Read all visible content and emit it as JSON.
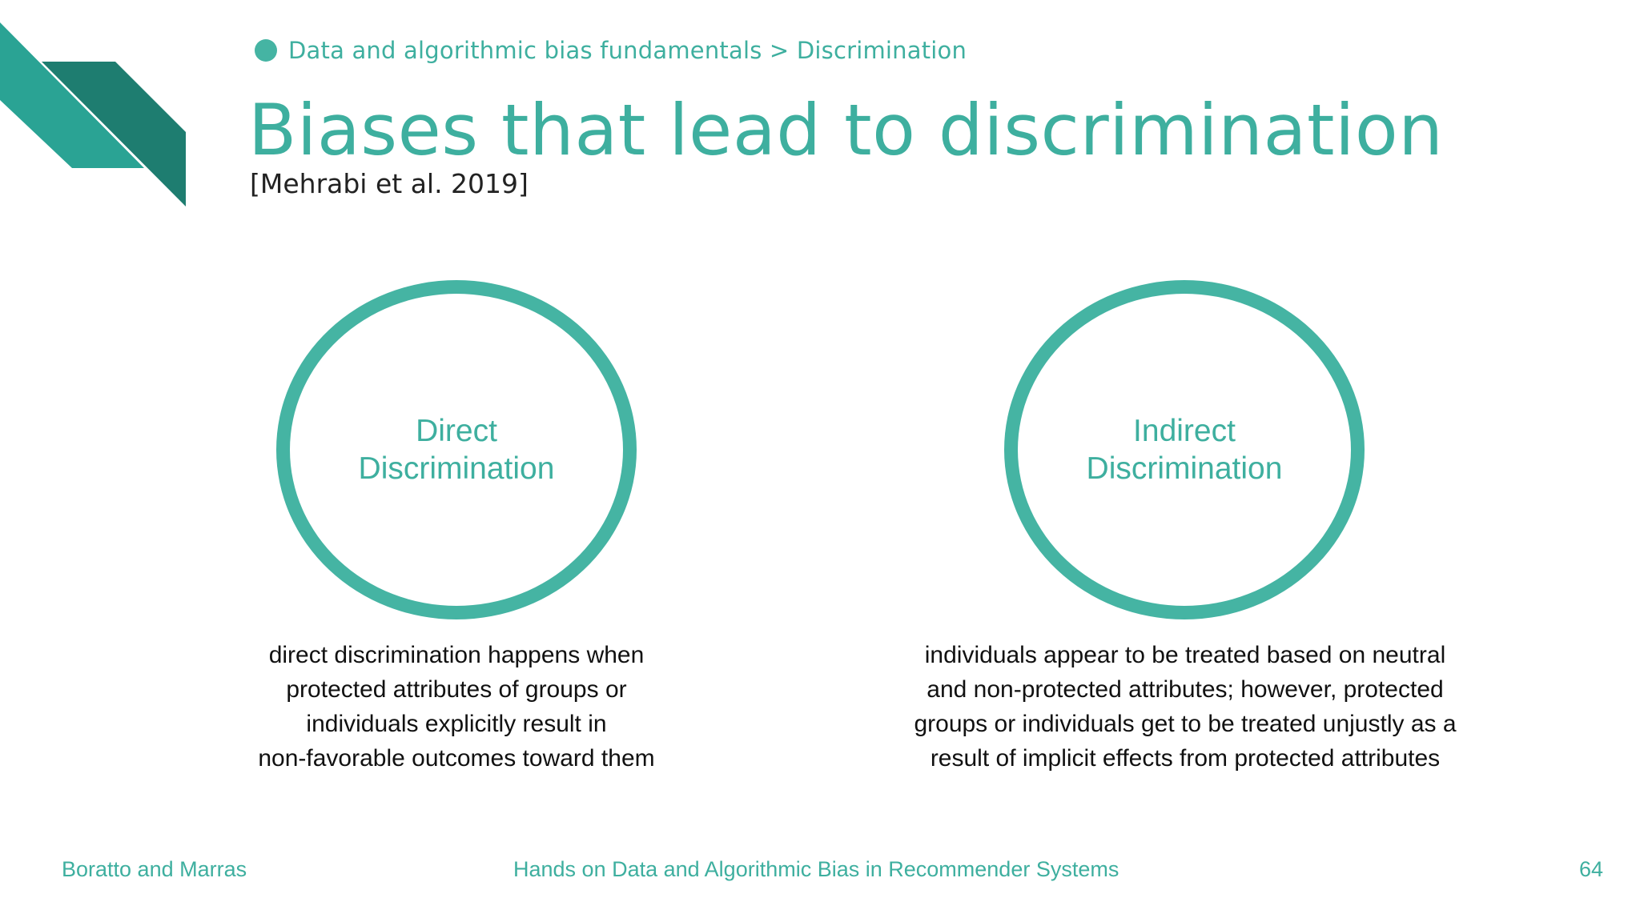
{
  "colors": {
    "accent": "#45b4a3",
    "accent_dark": "#1e7d70",
    "text": "#111111"
  },
  "breadcrumb": {
    "icon": "bullet-dot",
    "text": "Data and algorithmic bias fundamentals > Discrimination"
  },
  "slide": {
    "title": "Biases that lead to discrimination",
    "citation": "[Mehrabi et al. 2019]"
  },
  "concepts": [
    {
      "label": "Direct Discrimination",
      "description": "direct discrimination happens when\nprotected attributes of groups or\nindividuals explicitly result in\nnon-favorable outcomes toward them"
    },
    {
      "label": "Indirect Discrimination",
      "description": "individuals appear to be treated based on neutral\nand non-protected attributes; however, protected\ngroups or individuals get to be treated unjustly as a\nresult of implicit effects from protected attributes"
    }
  ],
  "footer": {
    "authors": "Boratto and Marras",
    "talk_title": "Hands on Data and Algorithmic Bias in Recommender Systems",
    "page_number": "64"
  }
}
